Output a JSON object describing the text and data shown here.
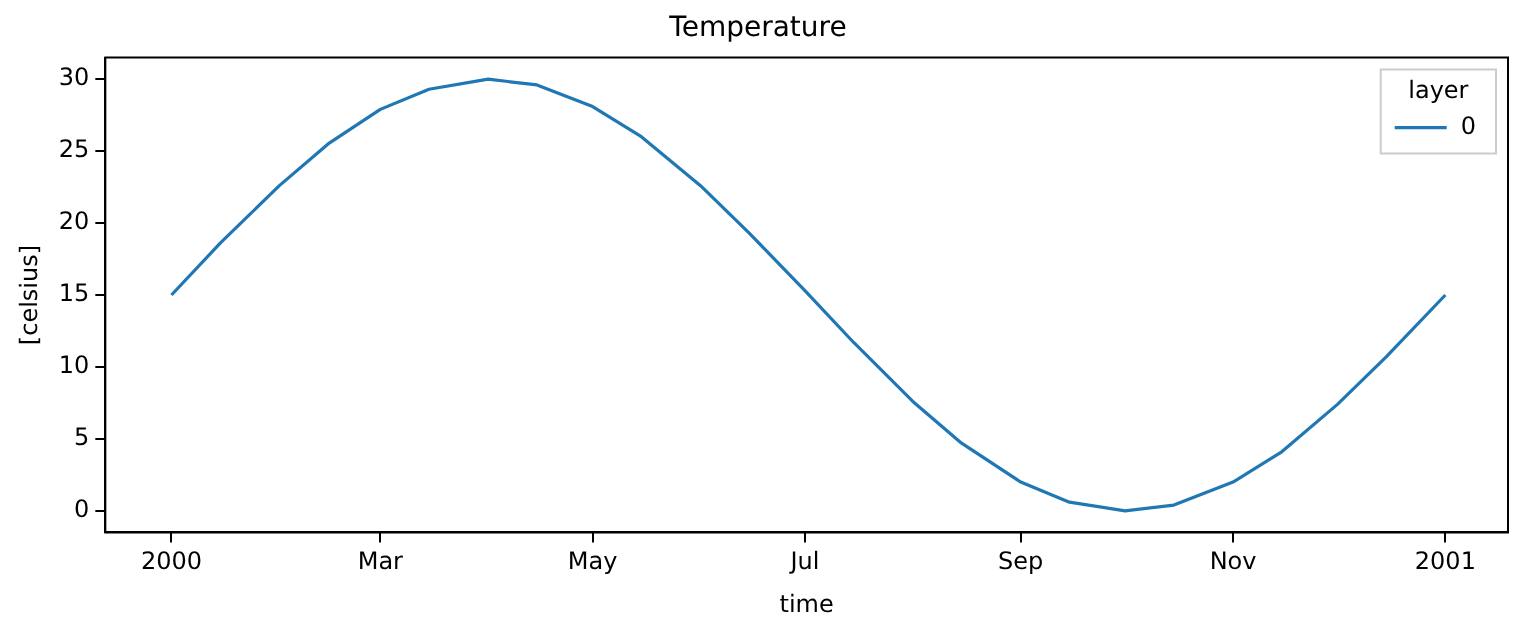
{
  "chart_data": {
    "type": "line",
    "title": "Temperature",
    "xlabel": "time",
    "ylabel": "[celsius]",
    "legend_title": "layer",
    "legend": "top right",
    "grid": false,
    "marker": "none",
    "line_style": "solid",
    "x": [
      "2000-01-01",
      "2000-01-15",
      "2000-02-01",
      "2000-02-15",
      "2000-03-01",
      "2000-03-15",
      "2000-04-01",
      "2000-04-15",
      "2000-05-01",
      "2000-05-15",
      "2000-06-01",
      "2000-06-15",
      "2000-07-01",
      "2000-07-15",
      "2000-08-01",
      "2000-08-15",
      "2000-09-01",
      "2000-09-15",
      "2000-10-01",
      "2000-10-15",
      "2000-11-01",
      "2000-11-15",
      "2000-12-01",
      "2000-12-15",
      "2001-01-01"
    ],
    "series": [
      {
        "name": "0",
        "color": "#1f77b4",
        "values": [
          15,
          18.6,
          22.6,
          25.5,
          27.9,
          29.3,
          30,
          29.6,
          28.1,
          26,
          22.6,
          19.3,
          15.3,
          11.7,
          7.6,
          4.7,
          2,
          0.6,
          0,
          0.4,
          2,
          4.1,
          7.4,
          10.7,
          15
        ]
      }
    ],
    "xlim": [
      "1999-12-13",
      "2001-01-19"
    ],
    "xticks": [
      {
        "value": "2000-01-01",
        "label": "2000"
      },
      {
        "value": "2000-03-01",
        "label": "Mar"
      },
      {
        "value": "2000-05-01",
        "label": "May"
      },
      {
        "value": "2000-07-01",
        "label": "Jul"
      },
      {
        "value": "2000-09-01",
        "label": "Sep"
      },
      {
        "value": "2000-11-01",
        "label": "Nov"
      },
      {
        "value": "2001-01-01",
        "label": "2001"
      }
    ],
    "ylim": [
      -1.5,
      31.5
    ],
    "yticks": [
      0,
      5,
      10,
      15,
      20,
      25,
      30
    ]
  }
}
